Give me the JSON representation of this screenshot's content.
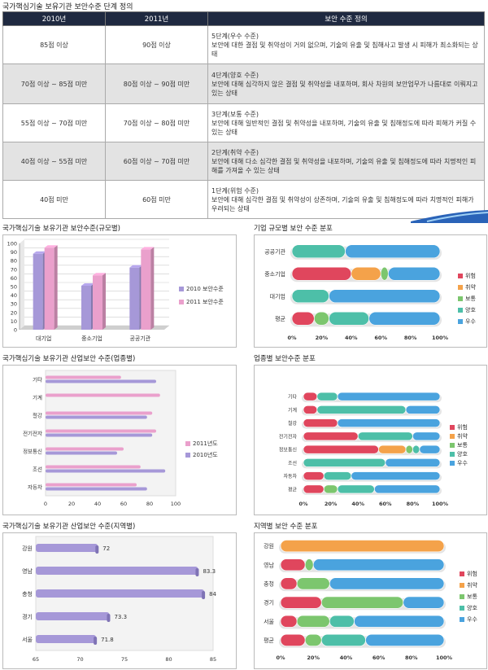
{
  "table": {
    "title": "국가핵심기술 보유기관 보안수준 단계 정의",
    "headers": [
      "2010년",
      "2011년",
      "보안 수준 정의"
    ],
    "rows": [
      {
        "y2010": "85점 이상",
        "y2011": "90점 이상",
        "level": "5단계(우수 수준)",
        "desc": "보안에 대한 결점 및 취약성이 거의 없으며, 기술의 유출 및 침해사고 발생 시 피해가 최소화되는 상태"
      },
      {
        "y2010": "70점 이상 ~ 85점 미만",
        "y2011": "80점 이상 ~ 90점 미만",
        "level": "4단계(양호 수준)",
        "desc": "보안에 대해 심각하지 않은 결점 및 취약성을 내포하며, 회사 차원의 보안업무가 나름대로 이뤄지고 있는 상태"
      },
      {
        "y2010": "55점 이상 ~ 70점 미만",
        "y2011": "70점 이상 ~ 80점 미만",
        "level": "3단계(보통 수준)",
        "desc": "보안에 대해 일반적인 결점 및 취약성을 내포하며, 기술의 유출 및 침해정도에 따라 피해가 커질 수 있는 상태"
      },
      {
        "y2010": "40점 이상 ~ 55점 미만",
        "y2011": "60점 이상 ~ 70점 미만",
        "level": "2단계(취약 수준)",
        "desc": "보안에 대해 다소 심각한 결점 및 취약성을 내포하며, 기술의 유출 및 침해정도에 따라 치명적인 피해를 가져올 수 있는 상태"
      },
      {
        "y2010": "40점 미만",
        "y2011": "60점 미만",
        "level": "1단계(위험 수준)",
        "desc": "보안에 대해 심각한 결점 및 취약성이 상존하며, 기술의 유출 및 침해정도에 따라 치명적인 피해가 우려되는 상태"
      }
    ]
  },
  "colors": {
    "header_bg": "#1f2940",
    "y2010": "#a698d8",
    "y2011": "#eaa0cc",
    "위험": "#e0465d",
    "취약": "#f4a24a",
    "보통": "#7cc66e",
    "양호": "#4dbfa8",
    "우수": "#4aa3de"
  },
  "chart_data": [
    {
      "type": "bar",
      "title": "국가핵심기술 보유기관 보안수준(규모별)",
      "categories": [
        "대기업",
        "중소기업",
        "공공기관"
      ],
      "series": [
        {
          "name": "2010 보안수준",
          "values": [
            88,
            51,
            72
          ]
        },
        {
          "name": "2011 보안수준",
          "values": [
            95,
            63,
            93
          ]
        }
      ],
      "ylim": [
        0,
        100
      ],
      "yticks": [
        "0",
        "10",
        "20",
        "30",
        "40",
        "50",
        "60",
        "70",
        "80",
        "90",
        "100"
      ],
      "legend": "right"
    },
    {
      "type": "bar",
      "orientation": "horizontal-stacked-percent",
      "title": "기업 규모별 보안 수준 분포",
      "categories": [
        "공공기관",
        "중소기업",
        "대기업",
        "평균"
      ],
      "series": [
        {
          "name": "위험",
          "values": [
            0,
            40,
            0,
            15
          ]
        },
        {
          "name": "취약",
          "values": [
            0,
            20,
            0,
            0
          ]
        },
        {
          "name": "보통",
          "values": [
            0,
            5,
            0,
            10
          ]
        },
        {
          "name": "양호",
          "values": [
            36,
            0,
            25,
            27
          ]
        },
        {
          "name": "우수",
          "values": [
            64,
            35,
            75,
            48
          ]
        }
      ],
      "xticks": [
        "0%",
        "20%",
        "40%",
        "60%",
        "80%",
        "100%"
      ],
      "legend": "right"
    },
    {
      "type": "bar",
      "orientation": "horizontal",
      "title": "국가핵심기술 보유기관 산업보안 수준(업종별)",
      "categories": [
        "기타",
        "기계",
        "철강",
        "전기전자",
        "정보통신",
        "조선",
        "자동차"
      ],
      "series": [
        {
          "name": "2011년도",
          "values": [
            58,
            88,
            82,
            85,
            60,
            73,
            70
          ]
        },
        {
          "name": "2010년도",
          "values": [
            85,
            0,
            78,
            82,
            55,
            92,
            78
          ]
        }
      ],
      "xlim": [
        0,
        100
      ],
      "xticks": [
        "0",
        "20",
        "40",
        "60",
        "80",
        "100"
      ],
      "legend": "right"
    },
    {
      "type": "bar",
      "orientation": "horizontal-stacked-percent",
      "title": "업종별 보안수준 분포",
      "categories": [
        "기타",
        "기계",
        "철강",
        "전기전자",
        "정보통신",
        "조선",
        "자동차",
        "평균"
      ],
      "series": [
        {
          "name": "위험",
          "values": [
            10,
            10,
            25,
            40,
            55,
            0,
            15,
            15
          ]
        },
        {
          "name": "취약",
          "values": [
            0,
            0,
            0,
            0,
            20,
            0,
            0,
            0
          ]
        },
        {
          "name": "보통",
          "values": [
            0,
            0,
            0,
            0,
            5,
            0,
            0,
            10
          ]
        },
        {
          "name": "양호",
          "values": [
            15,
            65,
            0,
            40,
            5,
            60,
            20,
            27
          ]
        },
        {
          "name": "우수",
          "values": [
            75,
            25,
            75,
            20,
            15,
            40,
            65,
            48
          ]
        }
      ],
      "xticks": [
        "0%",
        "20%",
        "40%",
        "60%",
        "80%",
        "100%"
      ],
      "legend": "right"
    },
    {
      "type": "bar",
      "orientation": "horizontal",
      "title": "국가핵심기술 보유기관 산업보안 수준(지역별)",
      "categories": [
        "강원",
        "영남",
        "충청",
        "경기",
        "서울"
      ],
      "values": [
        72,
        83.3,
        84,
        73.3,
        71.8
      ],
      "data_labels": [
        "72",
        "83.3",
        "84",
        "73.3",
        "71.8"
      ],
      "xlim": [
        65,
        85
      ],
      "xticks": [
        "65",
        "70",
        "75",
        "80",
        "85"
      ]
    },
    {
      "type": "bar",
      "orientation": "horizontal-stacked-percent",
      "title": "지역별 보안 수준 분포",
      "categories": [
        "강원",
        "영남",
        "충청",
        "경기",
        "서울",
        "평균"
      ],
      "series": [
        {
          "name": "위험",
          "values": [
            0,
            15,
            10,
            25,
            10,
            15
          ]
        },
        {
          "name": "취약",
          "values": [
            100,
            0,
            0,
            0,
            0,
            0
          ]
        },
        {
          "name": "보통",
          "values": [
            0,
            5,
            20,
            50,
            20,
            10
          ]
        },
        {
          "name": "양호",
          "values": [
            0,
            0,
            0,
            0,
            15,
            27
          ]
        },
        {
          "name": "우수",
          "values": [
            0,
            80,
            70,
            25,
            55,
            48
          ]
        }
      ],
      "xticks": [
        "0%",
        "20%",
        "40%",
        "60%",
        "80%",
        "100%"
      ],
      "legend": "right"
    }
  ]
}
